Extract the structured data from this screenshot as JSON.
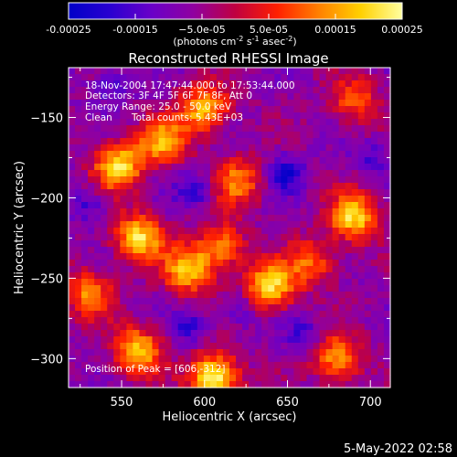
{
  "chart_data": {
    "type": "heatmap",
    "title": "Reconstructed RHESSI Image",
    "xlabel": "Heliocentric X (arcsec)",
    "ylabel": "Heliocentric Y (arcsec)",
    "xlim": [
      518,
      712
    ],
    "ylim": [
      -318,
      -119
    ],
    "x_ticks": [
      550,
      600,
      650,
      700
    ],
    "y_ticks": [
      -150,
      -200,
      -250,
      -300
    ],
    "colorbar": {
      "range": [
        -0.00025,
        0.00025
      ],
      "ticks": [
        "-0.00025",
        "-0.00015",
        "−5.0e-05",
        "5.0e-05",
        "0.00015",
        "0.00025"
      ],
      "tick_values": [
        -0.00025,
        -0.00015,
        -5e-05,
        5e-05,
        0.00015,
        0.00025
      ],
      "unit_label": "(photons cm",
      "unit_exp1": "-2",
      "unit_mid": " s",
      "unit_exp2": "-1",
      "unit_mid2": " asec",
      "unit_exp3": "-2",
      "unit_end": ")",
      "colors": [
        "#0000c8",
        "#2a00d0",
        "#6a00c8",
        "#9000a0",
        "#c00040",
        "#ff2000",
        "#ff8000",
        "#ffd000",
        "#ffffa0"
      ]
    },
    "annotations": {
      "time_range": "18-Nov-2004 17:47:44.000 to 17:53:44.000",
      "detectors": "Detectors: 3F 4F 5F 6F 7F 8F, Att 0",
      "energy": "Energy Range: 25.0 - 50.0 keV",
      "algorithm": "Clean",
      "counts": "Total counts: 5.43E+03",
      "peak": "Position of Peak = [606,-312]"
    },
    "peak": [
      606,
      -312
    ],
    "hotspots": [
      [
        548,
        -180,
        1.0
      ],
      [
        575,
        -165,
        0.8
      ],
      [
        600,
        -145,
        0.9
      ],
      [
        690,
        -140,
        0.6
      ],
      [
        560,
        -225,
        1.0
      ],
      [
        590,
        -245,
        0.9
      ],
      [
        610,
        -230,
        0.7
      ],
      [
        640,
        -255,
        1.0
      ],
      [
        690,
        -212,
        1.0
      ],
      [
        560,
        -295,
        0.9
      ],
      [
        606,
        -312,
        1.2
      ],
      [
        680,
        -300,
        0.8
      ],
      [
        665,
        -240,
        0.6
      ],
      [
        620,
        -190,
        0.7
      ],
      [
        530,
        -260,
        0.7
      ]
    ],
    "coldspots": [
      [
        650,
        -185,
        0.9
      ],
      [
        595,
        -195,
        0.8
      ],
      [
        545,
        -130,
        0.6
      ],
      [
        700,
        -175,
        0.5
      ],
      [
        590,
        -280,
        0.7
      ],
      [
        660,
        -285,
        0.6
      ],
      [
        530,
        -205,
        0.6
      ],
      [
        620,
        -270,
        0.5
      ]
    ]
  },
  "footer": {
    "timestamp": "5-May-2022 02:58"
  }
}
